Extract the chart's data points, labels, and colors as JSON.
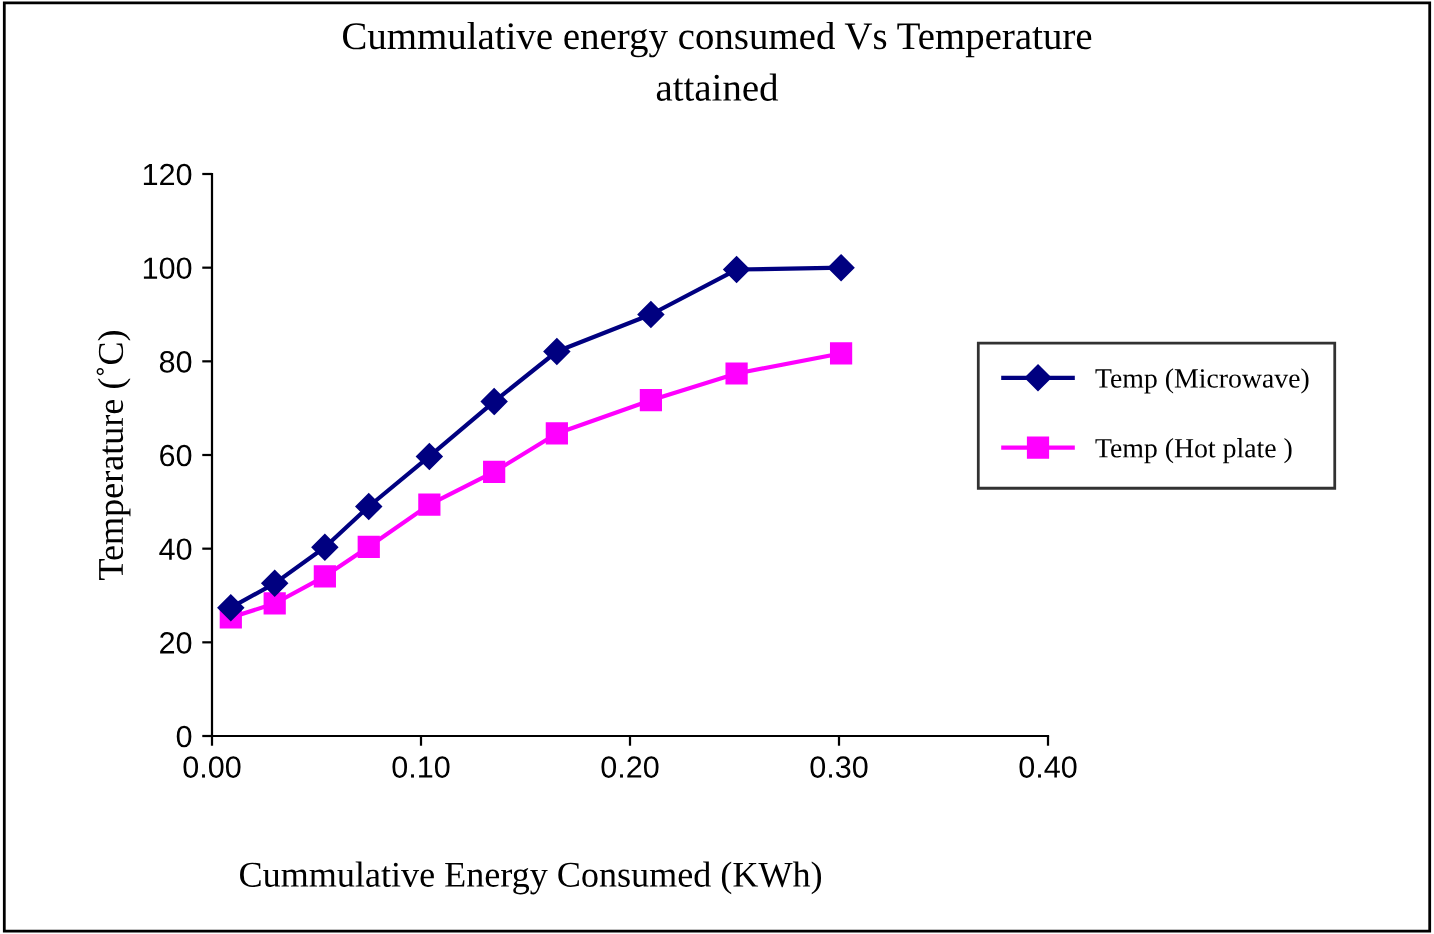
{
  "chart_data": {
    "type": "line",
    "title": "Cummulative energy consumed Vs Temperature\nattained",
    "xlabel": "Cummulative Energy Consumed (KWh)",
    "ylabel": "Temperature (˚C)",
    "x": [
      0.009,
      0.03,
      0.054,
      0.075,
      0.104,
      0.135,
      0.165,
      0.21,
      0.251,
      0.301
    ],
    "series": [
      {
        "name": "Temp (Microwave)",
        "color": "#000080",
        "marker": "diamond",
        "values": [
          27.4,
          32.6,
          40.3,
          49,
          59.7,
          71.4,
          82.1,
          90,
          99.6,
          100
        ]
      },
      {
        "name": "Temp (Hot plate )",
        "color": "#ff00ff",
        "marker": "square",
        "values": [
          25.3,
          28.3,
          34.1,
          40.4,
          49.4,
          56.4,
          64.6,
          71.7,
          77.4,
          81.7
        ]
      }
    ],
    "xlim": [
      0,
      0.4
    ],
    "xticks": [
      {
        "value": 0,
        "label": "0.00"
      },
      {
        "value": 0.1,
        "label": "0.10"
      },
      {
        "value": 0.2,
        "label": "0.20"
      },
      {
        "value": 0.3,
        "label": "0.30"
      },
      {
        "value": 0.4,
        "label": "0.40"
      }
    ],
    "ylim": [
      0,
      120
    ],
    "yticks": [
      0,
      20,
      40,
      60,
      80,
      100,
      120
    ],
    "grid": false,
    "legend": "right",
    "line_style": "solid"
  }
}
